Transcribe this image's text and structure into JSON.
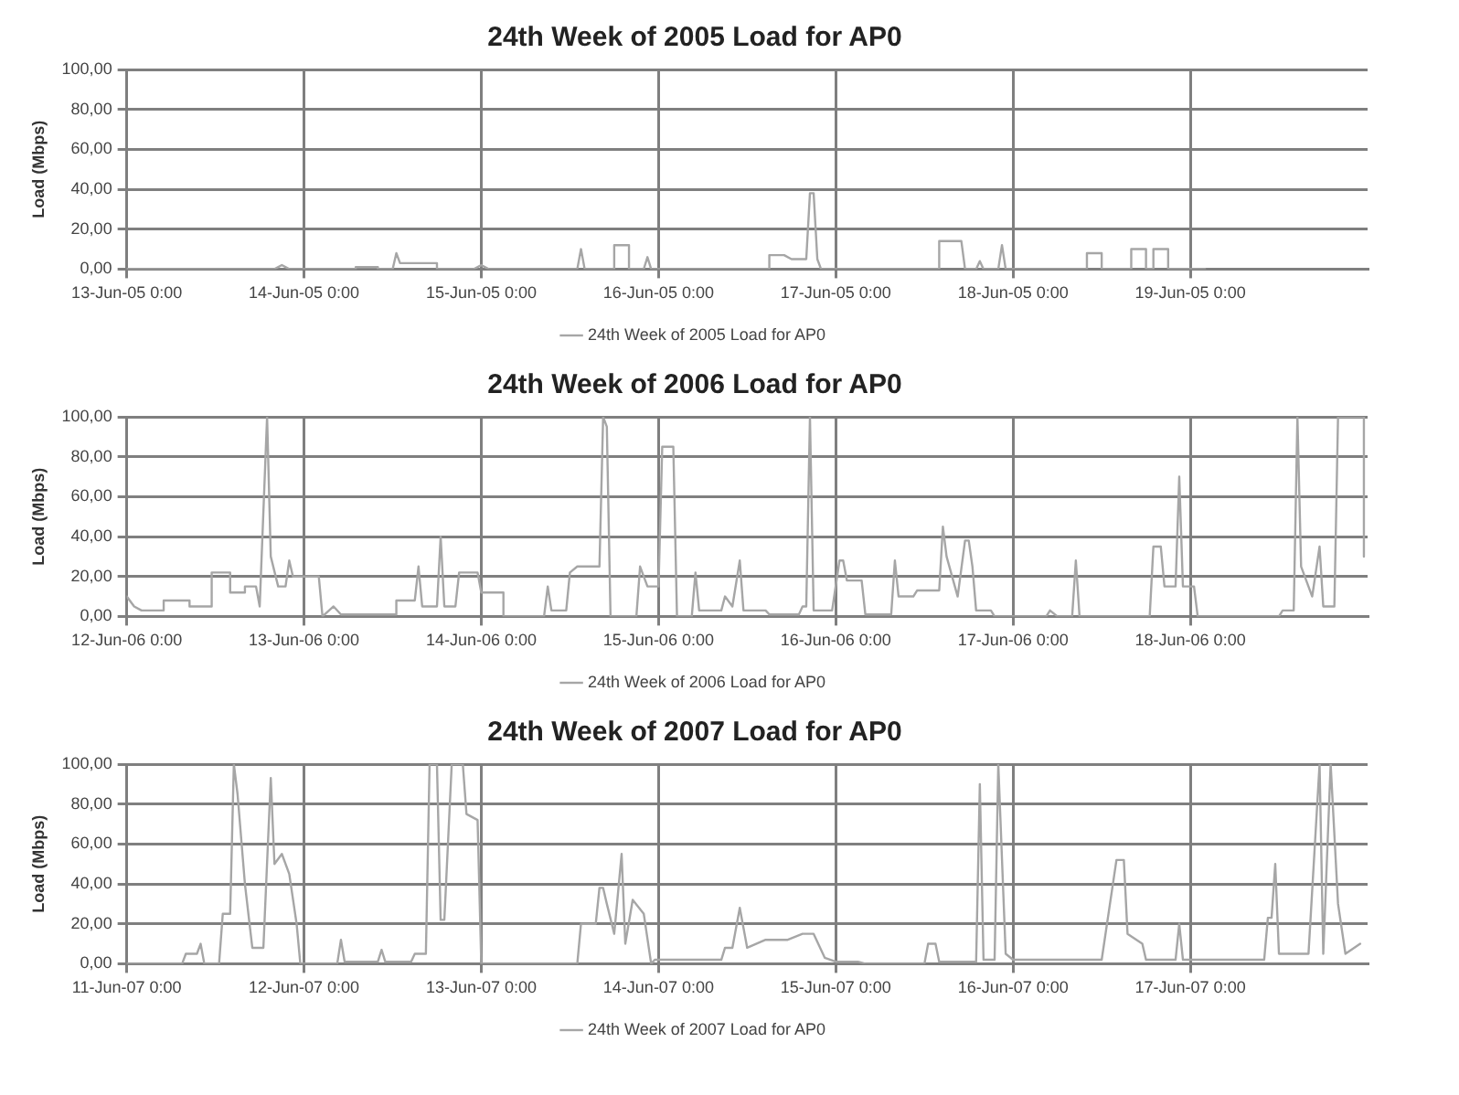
{
  "chart_data": [
    {
      "type": "line",
      "title": "24th Week of 2005 Load for AP0",
      "ylabel": "Load (Mbps)",
      "grid": true,
      "legend": "bottom",
      "marker": "none",
      "line_style": "solid",
      "xlim": [
        "2005-06-13T00:00",
        "2005-06-20T00:00"
      ],
      "xticks": [
        {
          "value": "2005-06-13T00:00",
          "label": "13-Jun-05 0:00"
        },
        {
          "value": "2005-06-14T00:00",
          "label": "14-Jun-05 0:00"
        },
        {
          "value": "2005-06-15T00:00",
          "label": "15-Jun-05 0:00"
        },
        {
          "value": "2005-06-16T00:00",
          "label": "16-Jun-05 0:00"
        },
        {
          "value": "2005-06-17T00:00",
          "label": "17-Jun-05 0:00"
        },
        {
          "value": "2005-06-18T00:00",
          "label": "18-Jun-05 0:00"
        },
        {
          "value": "2005-06-19T00:00",
          "label": "19-Jun-05 0:00"
        }
      ],
      "ylim": [
        0,
        100
      ],
      "yticks": [
        {
          "value": 0,
          "label": "0,00"
        },
        {
          "value": 20,
          "label": "20,00"
        },
        {
          "value": 40,
          "label": "40,00"
        },
        {
          "value": 60,
          "label": "60,00"
        },
        {
          "value": 80,
          "label": "80,00"
        },
        {
          "value": 100,
          "label": "100,00"
        }
      ],
      "series": [
        {
          "name": "24th Week of 2005 Load for AP0",
          "color": "#a6a6a6",
          "x": [
            "2005-06-13T00:00",
            "2005-06-13T20:00",
            "2005-06-13T21:00",
            "2005-06-13T22:00",
            "2005-06-14T07:00",
            "2005-06-14T07:00",
            "2005-06-14T10:00",
            "2005-06-14T10:00",
            "2005-06-14T12:00",
            "2005-06-14T12:30",
            "2005-06-14T13:00",
            "2005-06-14T18:00",
            "2005-06-14T18:00",
            "2005-06-14T23:00",
            "2005-06-15T00:00",
            "2005-06-15T01:00",
            "2005-06-15T13:00",
            "2005-06-15T13:30",
            "2005-06-15T14:00",
            "2005-06-15T18:00",
            "2005-06-15T18:00",
            "2005-06-15T20:00",
            "2005-06-15T20:00",
            "2005-06-15T22:00",
            "2005-06-15T22:30",
            "2005-06-15T23:00",
            "2005-06-16T15:00",
            "2005-06-16T15:00",
            "2005-06-16T17:00",
            "2005-06-16T18:00",
            "2005-06-16T20:00",
            "2005-06-16T20:30",
            "2005-06-16T21:00",
            "2005-06-16T21:30",
            "2005-06-16T22:00",
            "2005-06-17T14:00",
            "2005-06-17T14:00",
            "2005-06-17T17:00",
            "2005-06-17T17:30",
            "2005-06-17T19:00",
            "2005-06-17T19:30",
            "2005-06-17T20:00",
            "2005-06-17T22:00",
            "2005-06-17T22:30",
            "2005-06-17T23:00",
            "2005-06-18T10:00",
            "2005-06-18T10:00",
            "2005-06-18T12:00",
            "2005-06-18T12:00",
            "2005-06-18T16:00",
            "2005-06-18T16:00",
            "2005-06-18T18:00",
            "2005-06-18T18:00",
            "2005-06-18T19:00",
            "2005-06-18T19:00",
            "2005-06-18T21:00",
            "2005-06-18T21:00",
            "2005-06-19T02:00"
          ],
          "values": [
            0,
            0,
            2,
            0,
            0,
            1,
            1,
            0,
            0,
            8,
            3,
            3,
            0,
            0,
            2,
            0,
            0,
            10,
            0,
            0,
            12,
            12,
            0,
            0,
            6,
            0,
            0,
            7,
            7,
            5,
            5,
            38,
            38,
            5,
            0,
            0,
            14,
            14,
            0,
            0,
            4,
            0,
            0,
            12,
            0,
            0,
            8,
            8,
            0,
            0,
            10,
            10,
            0,
            0,
            10,
            10,
            0,
            0
          ]
        }
      ]
    },
    {
      "type": "line",
      "title": "24th Week of 2006 Load for AP0",
      "ylabel": "Load (Mbps)",
      "grid": true,
      "legend": "bottom",
      "marker": "none",
      "line_style": "solid",
      "xlim": [
        "2006-06-12T00:00",
        "2006-06-19T00:00"
      ],
      "xticks": [
        {
          "value": "2006-06-12T00:00",
          "label": "12-Jun-06 0:00"
        },
        {
          "value": "2006-06-13T00:00",
          "label": "13-Jun-06 0:00"
        },
        {
          "value": "2006-06-14T00:00",
          "label": "14-Jun-06 0:00"
        },
        {
          "value": "2006-06-15T00:00",
          "label": "15-Jun-06 0:00"
        },
        {
          "value": "2006-06-16T00:00",
          "label": "16-Jun-06 0:00"
        },
        {
          "value": "2006-06-17T00:00",
          "label": "17-Jun-06 0:00"
        },
        {
          "value": "2006-06-18T00:00",
          "label": "18-Jun-06 0:00"
        }
      ],
      "ylim": [
        0,
        100
      ],
      "yticks": [
        {
          "value": 0,
          "label": "0,00"
        },
        {
          "value": 20,
          "label": "20,00"
        },
        {
          "value": 40,
          "label": "40,00"
        },
        {
          "value": 60,
          "label": "60,00"
        },
        {
          "value": 80,
          "label": "80,00"
        },
        {
          "value": 100,
          "label": "100,00"
        }
      ],
      "series": [
        {
          "name": "24th Week of 2006 Load for AP0",
          "color": "#a6a6a6",
          "x": [
            "2006-06-12T00:00",
            "2006-06-12T01:00",
            "2006-06-12T02:00",
            "2006-06-12T05:00",
            "2006-06-12T05:00",
            "2006-06-12T08:30",
            "2006-06-12T08:30",
            "2006-06-12T11:30",
            "2006-06-12T11:30",
            "2006-06-12T14:00",
            "2006-06-12T14:00",
            "2006-06-12T16:00",
            "2006-06-12T16:00",
            "2006-06-12T17:30",
            "2006-06-12T18:00",
            "2006-06-12T19:00",
            "2006-06-12T19:30",
            "2006-06-12T20:30",
            "2006-06-12T21:30",
            "2006-06-12T22:00",
            "2006-06-12T22:30",
            "2006-06-13T02:00",
            "2006-06-13T02:30",
            "2006-06-13T04:00",
            "2006-06-13T05:00",
            "2006-06-13T12:30",
            "2006-06-13T12:30",
            "2006-06-13T15:00",
            "2006-06-13T15:30",
            "2006-06-13T16:00",
            "2006-06-13T18:00",
            "2006-06-13T18:30",
            "2006-06-13T19:00",
            "2006-06-13T20:30",
            "2006-06-13T21:00",
            "2006-06-13T23:30",
            "2006-06-14T00:00",
            "2006-06-14T03:00",
            "2006-06-14T03:00",
            "2006-06-14T08:30",
            "2006-06-14T09:00",
            "2006-06-14T09:30",
            "2006-06-14T11:30",
            "2006-06-14T12:00",
            "2006-06-14T13:00",
            "2006-06-14T16:00",
            "2006-06-14T16:30",
            "2006-06-14T17:00",
            "2006-06-14T17:30",
            "2006-06-14T21:00",
            "2006-06-14T21:30",
            "2006-06-14T22:30",
            "2006-06-15T00:00",
            "2006-06-15T00:30",
            "2006-06-15T02:00",
            "2006-06-15T02:30",
            "2006-06-15T04:30",
            "2006-06-15T05:00",
            "2006-06-15T05:30",
            "2006-06-15T08:30",
            "2006-06-15T09:00",
            "2006-06-15T10:00",
            "2006-06-15T11:00",
            "2006-06-15T11:30",
            "2006-06-15T14:30",
            "2006-06-15T15:00",
            "2006-06-15T19:00",
            "2006-06-15T19:30",
            "2006-06-15T20:00",
            "2006-06-15T20:30",
            "2006-06-15T21:00",
            "2006-06-15T23:30",
            "2006-06-16T00:30",
            "2006-06-16T01:00",
            "2006-06-16T01:30",
            "2006-06-16T03:30",
            "2006-06-16T04:00",
            "2006-06-16T07:30",
            "2006-06-16T08:00",
            "2006-06-16T08:30",
            "2006-06-16T10:30",
            "2006-06-16T11:00",
            "2006-06-16T14:00",
            "2006-06-16T14:30",
            "2006-06-16T15:00",
            "2006-06-16T16:30",
            "2006-06-16T17:30",
            "2006-06-16T18:00",
            "2006-06-16T18:30",
            "2006-06-16T19:00",
            "2006-06-16T21:00",
            "2006-06-16T21:30",
            "2006-06-17T04:30",
            "2006-06-17T05:00",
            "2006-06-17T06:00",
            "2006-06-17T08:00",
            "2006-06-17T08:30",
            "2006-06-17T09:00",
            "2006-06-17T18:30",
            "2006-06-17T19:00",
            "2006-06-17T20:00",
            "2006-06-17T20:30",
            "2006-06-17T22:00",
            "2006-06-17T22:30",
            "2006-06-17T23:00",
            "2006-06-18T00:30",
            "2006-06-18T01:00",
            "2006-06-18T12:00",
            "2006-06-18T12:30",
            "2006-06-18T14:00",
            "2006-06-18T14:30",
            "2006-06-18T15:00",
            "2006-06-18T16:30",
            "2006-06-18T17:30",
            "2006-06-18T18:00",
            "2006-06-18T19:30",
            "2006-06-18T20:00",
            "2006-06-18T23:30",
            "2006-06-18T23:30"
          ],
          "values": [
            10,
            5,
            3,
            3,
            8,
            8,
            5,
            5,
            22,
            22,
            12,
            12,
            15,
            15,
            5,
            100,
            30,
            15,
            15,
            28,
            20,
            20,
            0,
            5,
            1,
            1,
            8,
            8,
            25,
            5,
            5,
            40,
            5,
            5,
            22,
            22,
            12,
            12,
            0,
            0,
            15,
            3,
            3,
            22,
            25,
            25,
            100,
            95,
            0,
            0,
            25,
            15,
            15,
            85,
            85,
            0,
            0,
            22,
            3,
            3,
            10,
            5,
            28,
            3,
            3,
            1,
            1,
            5,
            5,
            100,
            3,
            3,
            28,
            28,
            18,
            18,
            1,
            1,
            28,
            10,
            10,
            13,
            13,
            45,
            30,
            10,
            38,
            38,
            25,
            3,
            3,
            0,
            0,
            3,
            0,
            0,
            28,
            0,
            0,
            35,
            35,
            15,
            15,
            70,
            15,
            15,
            0,
            0,
            3,
            3,
            100,
            25,
            10,
            35,
            5,
            5,
            100,
            100,
            30
          ]
        }
      ]
    },
    {
      "type": "line",
      "title": "24th Week of 2007 Load for AP0",
      "ylabel": "Load (Mbps)",
      "grid": true,
      "legend": "bottom",
      "marker": "none",
      "line_style": "solid",
      "xlim": [
        "2007-06-11T00:00",
        "2007-06-18T00:00"
      ],
      "xticks": [
        {
          "value": "2007-06-11T00:00",
          "label": "11-Jun-07 0:00"
        },
        {
          "value": "2007-06-12T00:00",
          "label": "12-Jun-07 0:00"
        },
        {
          "value": "2007-06-13T00:00",
          "label": "13-Jun-07 0:00"
        },
        {
          "value": "2007-06-14T00:00",
          "label": "14-Jun-07 0:00"
        },
        {
          "value": "2007-06-15T00:00",
          "label": "15-Jun-07 0:00"
        },
        {
          "value": "2007-06-16T00:00",
          "label": "16-Jun-07 0:00"
        },
        {
          "value": "2007-06-17T00:00",
          "label": "17-Jun-07 0:00"
        }
      ],
      "ylim": [
        0,
        100
      ],
      "yticks": [
        {
          "value": 0,
          "label": "0,00"
        },
        {
          "value": 20,
          "label": "20,00"
        },
        {
          "value": 40,
          "label": "40,00"
        },
        {
          "value": 60,
          "label": "60,00"
        },
        {
          "value": 80,
          "label": "80,00"
        },
        {
          "value": 100,
          "label": "100,00"
        }
      ],
      "series": [
        {
          "name": "24th Week of 2007 Load for AP0",
          "color": "#a6a6a6",
          "x": [
            "2007-06-11T00:00",
            "2007-06-11T07:30",
            "2007-06-11T08:00",
            "2007-06-11T09:30",
            "2007-06-11T10:00",
            "2007-06-11T10:30",
            "2007-06-11T12:30",
            "2007-06-11T13:00",
            "2007-06-11T14:00",
            "2007-06-11T14:30",
            "2007-06-11T15:00",
            "2007-06-11T16:00",
            "2007-06-11T17:00",
            "2007-06-11T18:30",
            "2007-06-11T19:30",
            "2007-06-11T20:00",
            "2007-06-11T21:00",
            "2007-06-11T22:00",
            "2007-06-11T23:00",
            "2007-06-11T23:30",
            "2007-06-12T04:30",
            "2007-06-12T05:00",
            "2007-06-12T05:30",
            "2007-06-12T10:00",
            "2007-06-12T10:30",
            "2007-06-12T11:00",
            "2007-06-12T14:30",
            "2007-06-12T15:00",
            "2007-06-12T16:30",
            "2007-06-12T17:00",
            "2007-06-12T18:00",
            "2007-06-12T18:30",
            "2007-06-12T19:00",
            "2007-06-12T20:00",
            "2007-06-12T21:30",
            "2007-06-12T22:00",
            "2007-06-12T23:30",
            "2007-06-13T00:00",
            "2007-06-13T13:00",
            "2007-06-13T13:30",
            "2007-06-13T15:30",
            "2007-06-13T16:00",
            "2007-06-13T16:30",
            "2007-06-13T17:00",
            "2007-06-13T18:00",
            "2007-06-13T19:00",
            "2007-06-13T19:30",
            "2007-06-13T20:30",
            "2007-06-13T22:00",
            "2007-06-13T23:00",
            "2007-06-13T23:30",
            "2007-06-14T08:30",
            "2007-06-14T09:00",
            "2007-06-14T10:00",
            "2007-06-14T11:00",
            "2007-06-14T12:00",
            "2007-06-14T14:30",
            "2007-06-14T17:30",
            "2007-06-14T19:30",
            "2007-06-14T21:00",
            "2007-06-14T22:30",
            "2007-06-15T00:00",
            "2007-06-15T03:00",
            "2007-06-15T04:00",
            "2007-06-15T12:00",
            "2007-06-15T12:30",
            "2007-06-15T13:30",
            "2007-06-15T14:00",
            "2007-06-15T19:00",
            "2007-06-15T19:30",
            "2007-06-15T20:00",
            "2007-06-15T21:30",
            "2007-06-15T22:00",
            "2007-06-15T23:00",
            "2007-06-16T00:00",
            "2007-06-16T12:00",
            "2007-06-16T14:00",
            "2007-06-16T15:00",
            "2007-06-16T15:30",
            "2007-06-16T17:30",
            "2007-06-16T18:00",
            "2007-06-16T22:00",
            "2007-06-16T22:30",
            "2007-06-16T23:00",
            "2007-06-17T10:00",
            "2007-06-17T10:30",
            "2007-06-17T11:00",
            "2007-06-17T11:30",
            "2007-06-17T12:00",
            "2007-06-17T16:00",
            "2007-06-17T17:30",
            "2007-06-17T18:00",
            "2007-06-17T19:00",
            "2007-06-17T20:00",
            "2007-06-17T21:00",
            "2007-06-17T23:00"
          ],
          "values": [
            0,
            0,
            5,
            5,
            10,
            0,
            0,
            25,
            25,
            100,
            85,
            40,
            8,
            8,
            93,
            50,
            55,
            45,
            20,
            0,
            0,
            12,
            1,
            1,
            7,
            1,
            1,
            5,
            5,
            100,
            100,
            22,
            22,
            100,
            100,
            75,
            72,
            0,
            0,
            20,
            20,
            38,
            38,
            30,
            15,
            55,
            10,
            32,
            25,
            0,
            2,
            2,
            8,
            8,
            28,
            8,
            12,
            12,
            15,
            15,
            3,
            1,
            1,
            0,
            0,
            10,
            10,
            1,
            1,
            90,
            2,
            2,
            100,
            5,
            2,
            2,
            52,
            52,
            15,
            10,
            2,
            2,
            20,
            2,
            2,
            23,
            23,
            50,
            5,
            5,
            100,
            5,
            100,
            30,
            5,
            10
          ]
        }
      ]
    }
  ]
}
